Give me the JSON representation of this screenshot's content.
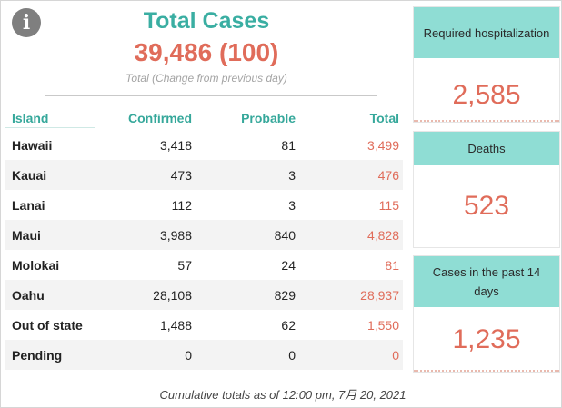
{
  "header": {
    "info_icon": "i",
    "title": "Total Cases",
    "total_value": "39,486 (100)",
    "subtitle": "Total (Change from previous day)"
  },
  "table": {
    "columns": {
      "island": "Island",
      "confirmed": "Confirmed",
      "probable": "Probable",
      "total": "Total"
    },
    "rows": [
      {
        "island": "Hawaii",
        "confirmed": "3,418",
        "probable": "81",
        "total": "3,499"
      },
      {
        "island": "Kauai",
        "confirmed": "473",
        "probable": "3",
        "total": "476"
      },
      {
        "island": "Lanai",
        "confirmed": "112",
        "probable": "3",
        "total": "115"
      },
      {
        "island": "Maui",
        "confirmed": "3,988",
        "probable": "840",
        "total": "4,828"
      },
      {
        "island": "Molokai",
        "confirmed": "57",
        "probable": "24",
        "total": "81"
      },
      {
        "island": "Oahu",
        "confirmed": "28,108",
        "probable": "829",
        "total": "28,937"
      },
      {
        "island": "Out of state",
        "confirmed": "1,488",
        "probable": "62",
        "total": "1,550"
      },
      {
        "island": "Pending",
        "confirmed": "0",
        "probable": "0",
        "total": "0"
      }
    ]
  },
  "footer": "Cumulative totals as of 12:00 pm, 7月 20, 2021",
  "cards": {
    "hospitalization": {
      "label": "Required hospitalization",
      "value": "2,585"
    },
    "deaths": {
      "label": "Deaths",
      "value": "523"
    },
    "recent": {
      "label": "Cases in the past 14 days",
      "value": "1,235"
    }
  },
  "colors": {
    "accent_teal": "#3aaea2",
    "card_header": "#8fddd4",
    "value_red": "#e06c5a"
  }
}
